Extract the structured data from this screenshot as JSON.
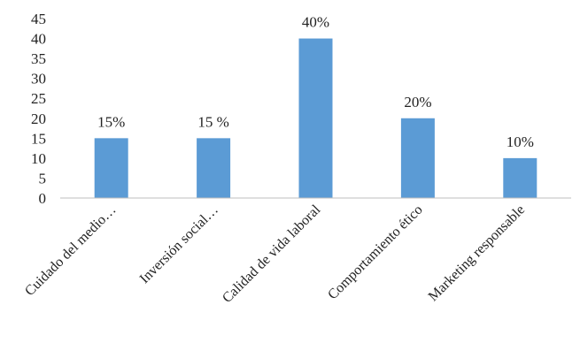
{
  "chart_data": {
    "type": "bar",
    "categories": [
      "Cuidado del medio…",
      "Inversión  social…",
      "Calidad de vida laboral",
      "Comportamiento ético",
      "Marketing responsable"
    ],
    "values": [
      15,
      15,
      40,
      20,
      10
    ],
    "data_labels": [
      "15%",
      "15 %",
      "40%",
      "20%",
      "10%"
    ],
    "y_ticks": [
      "0",
      "5",
      "10",
      "15",
      "20",
      "25",
      "30",
      "35",
      "40",
      "45"
    ],
    "ylim": [
      0,
      45
    ],
    "grid": false,
    "legend": "none",
    "bar_color": "#5B9BD5",
    "axis_color": "#bfbfbf"
  }
}
